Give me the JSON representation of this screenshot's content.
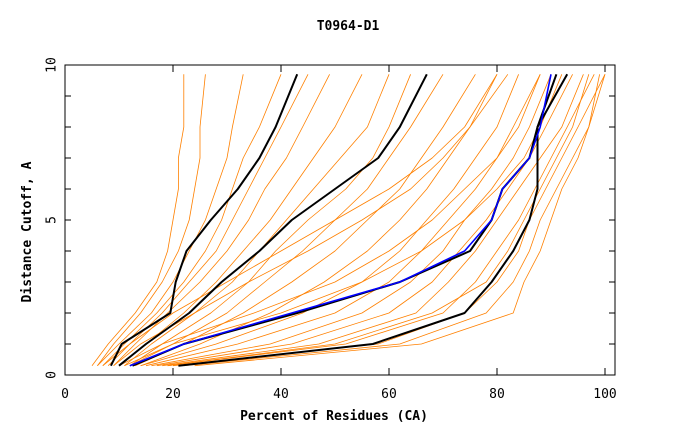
{
  "chart_data": {
    "type": "line",
    "title": "T0964-D1",
    "xlabel": "Percent of Residues (CA)",
    "ylabel": "Distance Cutoff, A",
    "xlim": [
      0,
      100
    ],
    "ylim": [
      0,
      10
    ],
    "xticks": [
      "0",
      "20",
      "40",
      "60",
      "80",
      "100"
    ],
    "yticks": [
      "0",
      "5",
      "10"
    ],
    "grid": false,
    "y_levels": [
      0.3,
      1,
      2,
      3,
      4,
      5,
      6,
      7,
      8,
      9.7
    ],
    "colors": {
      "models": "#ff8000",
      "highlight_black": "#000000",
      "highlight_blue": "#0000ff"
    },
    "orange_series": [
      [
        5,
        8,
        13,
        17,
        19,
        20,
        21,
        21,
        22,
        22
      ],
      [
        6,
        9,
        14,
        18,
        21,
        23,
        24,
        25,
        25,
        26
      ],
      [
        6,
        10,
        16,
        20,
        23,
        26,
        28,
        30,
        31,
        33
      ],
      [
        7,
        11,
        17,
        22,
        26,
        29,
        31,
        33,
        36,
        40
      ],
      [
        8,
        12,
        18,
        23,
        28,
        31,
        34,
        37,
        40,
        45
      ],
      [
        9,
        13,
        19,
        25,
        30,
        34,
        37,
        41,
        44,
        49
      ],
      [
        10,
        15,
        22,
        28,
        33,
        38,
        42,
        46,
        50,
        55
      ],
      [
        11,
        16,
        24,
        31,
        36,
        41,
        46,
        51,
        56,
        60
      ],
      [
        12,
        18,
        27,
        34,
        39,
        45,
        52,
        57,
        60,
        64
      ],
      [
        12,
        20,
        30,
        37,
        44,
        50,
        56,
        60,
        64,
        70
      ],
      [
        13,
        22,
        33,
        42,
        50,
        56,
        62,
        66,
        70,
        76
      ],
      [
        14,
        25,
        38,
        48,
        56,
        62,
        67,
        71,
        75,
        80
      ],
      [
        14,
        28,
        44,
        55,
        62,
        67,
        72,
        76,
        80,
        84
      ],
      [
        15,
        32,
        50,
        60,
        66,
        71,
        76,
        80,
        83,
        88
      ],
      [
        16,
        38,
        55,
        64,
        70,
        74,
        79,
        83,
        86,
        90
      ],
      [
        17,
        42,
        60,
        68,
        73,
        78,
        82,
        86,
        89,
        94
      ],
      [
        18,
        47,
        65,
        71,
        76,
        80,
        84,
        88,
        92,
        96
      ],
      [
        19,
        52,
        70,
        76,
        80,
        84,
        87,
        90,
        93,
        98
      ],
      [
        20,
        58,
        74,
        80,
        84,
        86,
        89,
        92,
        95,
        100
      ],
      [
        22,
        62,
        78,
        83,
        86,
        88,
        91,
        94,
        97,
        99
      ],
      [
        24,
        66,
        83,
        85,
        88,
        90,
        92,
        95,
        97,
        100
      ],
      [
        19,
        50,
        68,
        78,
        82,
        85,
        88,
        91,
        94,
        97
      ],
      [
        9,
        14,
        24,
        34,
        45,
        55,
        64,
        70,
        75,
        82
      ],
      [
        7,
        12,
        20,
        30,
        40,
        50,
        60,
        68,
        74,
        80
      ],
      [
        10,
        18,
        35,
        50,
        60,
        68,
        74,
        80,
        84,
        88
      ],
      [
        11,
        20,
        40,
        55,
        66,
        74,
        80,
        85,
        88,
        92
      ]
    ],
    "black_series": [
      [
        8.5,
        10.5,
        19.5,
        20.5,
        22.5,
        27,
        32,
        36,
        39,
        43
      ],
      [
        10,
        15,
        23,
        29,
        36,
        42,
        50,
        58,
        62,
        67
      ],
      [
        12.5,
        22,
        43,
        62,
        75,
        79,
        81,
        86,
        87.5,
        91
      ],
      [
        21,
        57,
        74,
        79,
        83,
        86,
        87.5,
        87.5,
        87.5,
        93
      ]
    ],
    "blue_series": [
      [
        12,
        22,
        42,
        62,
        74,
        79,
        81,
        86,
        88,
        90
      ]
    ]
  }
}
